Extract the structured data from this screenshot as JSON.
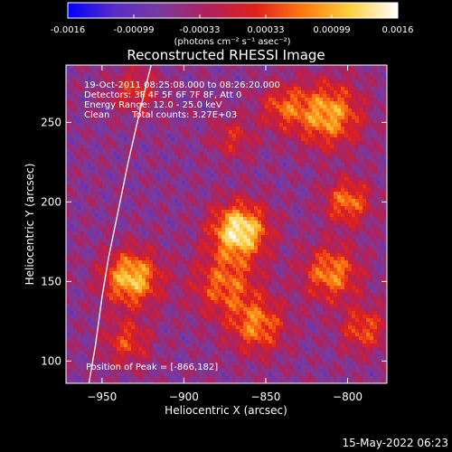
{
  "chart_data": {
    "type": "heatmap",
    "title": "Reconstructed RHESSI Image",
    "xlabel": "Heliocentric X (arcsec)",
    "ylabel": "Heliocentric Y (arcsec)",
    "xlim": [
      -972,
      -776
    ],
    "ylim": [
      86,
      286
    ],
    "xticks": [
      -950,
      -900,
      -850,
      -800
    ],
    "yticks": [
      100,
      150,
      200,
      250
    ],
    "colorbar": {
      "label": "(photons cm⁻² s⁻¹ asec⁻²)",
      "min": -0.0016,
      "max": 0.0016,
      "ticks": [
        "-0.0016",
        "-0.00099",
        "-0.00033",
        "0.00033",
        "0.00099",
        "0.0016"
      ],
      "colormap_stops": [
        "#0000ff",
        "#5a2cc8",
        "#7a3a9c",
        "#b0205a",
        "#e0201a",
        "#ff7a10",
        "#ffd040",
        "#ffffff"
      ]
    },
    "annotations": [
      "19-Oct-2011 08:25:08.000 to 08:26:20.000",
      "Detectors: 3F 4F 5F 6F 7F 8F, Att 0",
      "Energy Range: 12.0 - 25.0 keV",
      "Clean",
      "Total counts: 3.27E+03"
    ],
    "peak_label": "Position of Peak = [-866,182]",
    "peak": [
      -866,
      182
    ],
    "sources": [
      {
        "x": -866,
        "y": 182,
        "sigma": 12,
        "amp": 1.0
      },
      {
        "x": -932,
        "y": 152,
        "sigma": 12,
        "amp": 0.85
      },
      {
        "x": -875,
        "y": 148,
        "sigma": 14,
        "amp": 0.55
      },
      {
        "x": -855,
        "y": 122,
        "sigma": 12,
        "amp": 0.6
      },
      {
        "x": -812,
        "y": 255,
        "sigma": 14,
        "amp": 0.75
      },
      {
        "x": -800,
        "y": 200,
        "sigma": 10,
        "amp": 0.6
      },
      {
        "x": -810,
        "y": 155,
        "sigma": 12,
        "amp": 0.65
      },
      {
        "x": -790,
        "y": 120,
        "sigma": 10,
        "amp": 0.5
      },
      {
        "x": -935,
        "y": 112,
        "sigma": 10,
        "amp": 0.45
      },
      {
        "x": -930,
        "y": 270,
        "sigma": 10,
        "amp": 0.4
      },
      {
        "x": -840,
        "y": 260,
        "sigma": 10,
        "amp": 0.45
      },
      {
        "x": -870,
        "y": 240,
        "sigma": 9,
        "amp": 0.35
      }
    ],
    "limb_curve": [
      [
        -958,
        86
      ],
      [
        -954,
        110
      ],
      [
        -950,
        140
      ],
      [
        -946,
        165
      ],
      [
        -940,
        195
      ],
      [
        -934,
        225
      ],
      [
        -928,
        252
      ],
      [
        -922,
        278
      ],
      [
        -920,
        286
      ]
    ]
  },
  "footer": {
    "timestamp": "15-May-2022 06:23"
  }
}
